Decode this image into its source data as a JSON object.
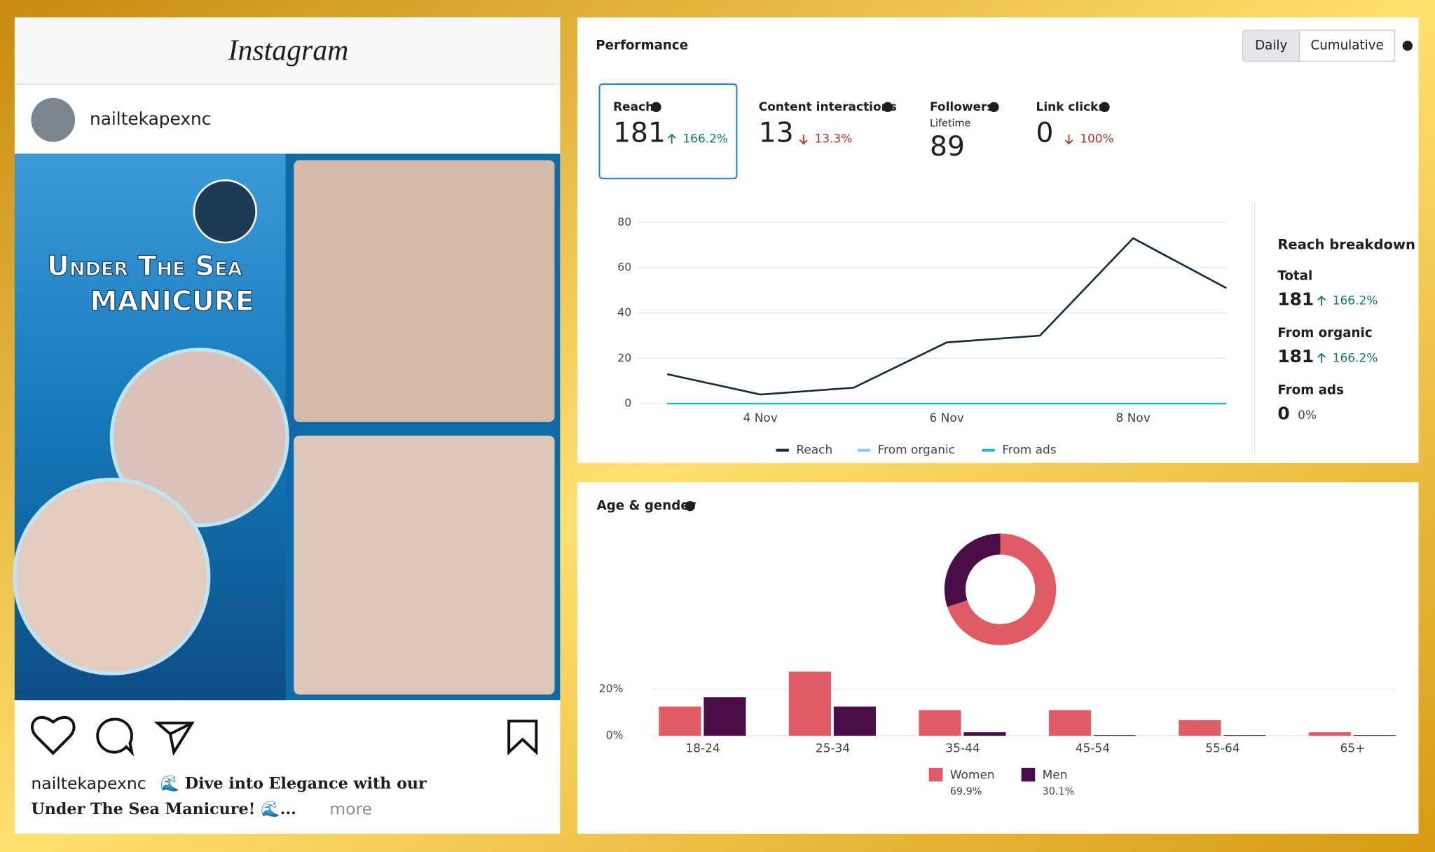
{
  "instagram": {
    "logo": "Instagram",
    "username": "nailtekapexnc",
    "image_text": [
      "Under The Sea",
      "MANICURE"
    ],
    "caption": {
      "username": "nailtekapexnc",
      "line1": "🌊 Dive into Elegance with our",
      "line2": "Under The Sea Manicure! 🌊...",
      "more": "more"
    }
  },
  "performance": {
    "title": "Performance",
    "toggle": [
      "Daily",
      "Cumulative"
    ],
    "metrics": [
      {
        "label": "Reach",
        "value": 181,
        "change": "166.2%",
        "direction": "up"
      },
      {
        "label": "Content interactions",
        "value": 13,
        "change": "13.3%",
        "direction": "down"
      },
      {
        "label": "Followers",
        "sublabel": "Lifetime",
        "value": 89
      },
      {
        "label": "Link clicks",
        "value": 0,
        "change": "100%",
        "direction": "down"
      }
    ],
    "reach_chart": {
      "type": "line",
      "categories": [
        null,
        "4 Nov",
        null,
        "6 Nov",
        null,
        "8 Nov",
        null
      ],
      "series": [
        {
          "name": "Reach",
          "color": "#1c2b39",
          "values": [
            13,
            4,
            7,
            27,
            30,
            73,
            51
          ]
        },
        {
          "name": "From organic",
          "color": "#7fd3f0",
          "values": [
            13,
            4,
            7,
            27,
            30,
            73,
            51
          ]
        },
        {
          "name": "From ads",
          "color": "#29b8c8",
          "values": [
            0,
            0,
            0,
            0,
            0,
            0,
            0
          ]
        }
      ],
      "ylim": [
        0,
        80
      ],
      "yticks": [
        0,
        20,
        40,
        60,
        80
      ],
      "grid": true
    },
    "breakdown": {
      "title": "Reach breakdown",
      "items": [
        {
          "label": "Total",
          "value": 181,
          "change": "166.2%",
          "direction": "up"
        },
        {
          "label": "From organic",
          "value": 181,
          "change": "166.2%",
          "direction": "up"
        },
        {
          "label": "From ads",
          "value": 0,
          "change": "0%"
        }
      ]
    }
  },
  "age_gender": {
    "title": "Age & gender",
    "donut": {
      "type": "pie",
      "values": [
        69.9,
        30.1
      ],
      "value_labels": [
        "69.9%",
        "30.1%"
      ]
    },
    "bars": {
      "type": "bar",
      "categories": [
        "18-24",
        "25-34",
        "35-44",
        "45-54",
        "55-64",
        "65+"
      ],
      "series": [
        {
          "name": "Women",
          "color": "#e05c65",
          "values": [
            12.5,
            27.5,
            11,
            11,
            6.7,
            1.5
          ]
        },
        {
          "name": "Men",
          "color": "#4a0d4a",
          "values": [
            16.5,
            12.5,
            1.5,
            0.3,
            0.3,
            0.3
          ]
        }
      ],
      "ylim": [
        0,
        30
      ],
      "yticks": [
        {
          "value": 0,
          "label": "0%"
        },
        {
          "value": 20,
          "label": "20%"
        }
      ],
      "grid": true
    }
  }
}
